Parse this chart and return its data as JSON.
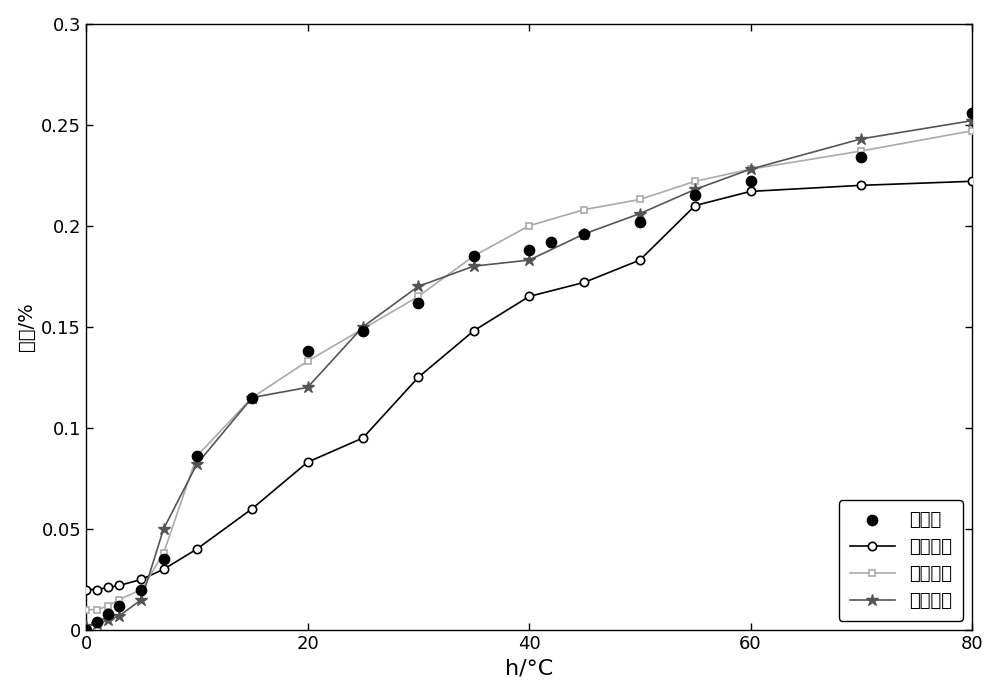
{
  "sample_x": [
    0,
    1,
    2,
    3,
    5,
    7,
    10,
    15,
    20,
    25,
    30,
    35,
    40,
    42,
    45,
    50,
    55,
    60,
    70,
    80
  ],
  "sample_y": [
    0.0,
    0.004,
    0.008,
    0.012,
    0.02,
    0.035,
    0.086,
    0.115,
    0.138,
    0.148,
    0.162,
    0.185,
    0.188,
    0.192,
    0.196,
    0.202,
    0.215,
    0.222,
    0.234,
    0.256
  ],
  "gauss_x": [
    0,
    1,
    2,
    3,
    5,
    7,
    10,
    15,
    20,
    25,
    30,
    35,
    40,
    45,
    50,
    55,
    60,
    70,
    80
  ],
  "gauss_y": [
    0.02,
    0.02,
    0.021,
    0.022,
    0.025,
    0.03,
    0.04,
    0.06,
    0.083,
    0.095,
    0.125,
    0.148,
    0.165,
    0.172,
    0.183,
    0.21,
    0.217,
    0.22,
    0.222
  ],
  "sphere_x": [
    0,
    1,
    2,
    3,
    5,
    7,
    10,
    15,
    20,
    25,
    30,
    35,
    40,
    45,
    50,
    55,
    60,
    70,
    80
  ],
  "sphere_y": [
    0.01,
    0.01,
    0.012,
    0.015,
    0.02,
    0.038,
    0.086,
    0.115,
    0.133,
    0.149,
    0.165,
    0.185,
    0.2,
    0.208,
    0.213,
    0.222,
    0.228,
    0.237,
    0.247
  ],
  "exp_x": [
    0,
    1,
    2,
    3,
    5,
    7,
    10,
    15,
    20,
    25,
    30,
    35,
    40,
    45,
    50,
    55,
    60,
    70,
    80
  ],
  "exp_y": [
    0.002,
    0.003,
    0.005,
    0.007,
    0.015,
    0.05,
    0.082,
    0.115,
    0.12,
    0.15,
    0.17,
    0.18,
    0.183,
    0.196,
    0.206,
    0.218,
    0.228,
    0.243,
    0.252
  ],
  "xlabel": "h/°C",
  "ylabel": "误差/%",
  "xlim": [
    0,
    80
  ],
  "ylim": [
    0,
    0.3
  ],
  "yticks": [
    0,
    0.05,
    0.1,
    0.15,
    0.2,
    0.25,
    0.3
  ],
  "xticks": [
    0,
    20,
    40,
    60,
    80
  ],
  "legend_labels": [
    "样本点",
    "高斯模型",
    "球状模型",
    "指数模型"
  ],
  "sample_color": "#000000",
  "gauss_color": "#000000",
  "sphere_color": "#aaaaaa",
  "exp_color": "#555555",
  "background_color": "#ffffff"
}
